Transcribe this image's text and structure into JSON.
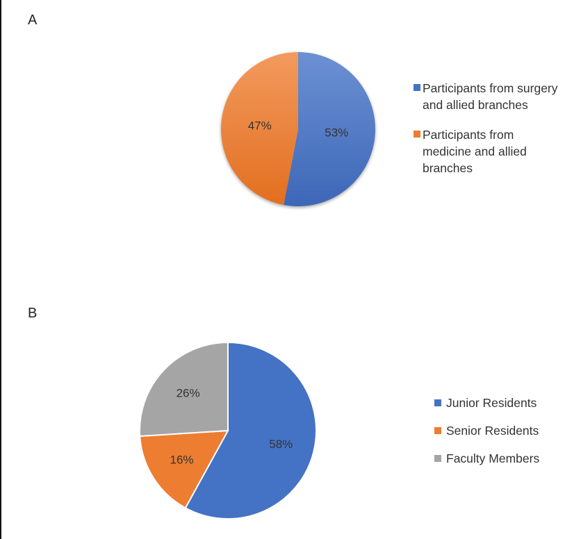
{
  "figure": {
    "panel_a_label": "A",
    "panel_b_label": "B"
  },
  "chart_data": [
    {
      "panel": "A",
      "type": "pie",
      "start_angle_deg": 0,
      "direction": "clockwise",
      "legend_position": "right",
      "slices": [
        {
          "label": "Participants from surgery and allied branches",
          "value": 53,
          "text": "53%",
          "color": "#4472C4"
        },
        {
          "label": "Participants from medicine and allied branches",
          "value": 47,
          "text": "47%",
          "color": "#ED7D31"
        }
      ]
    },
    {
      "panel": "B",
      "type": "pie",
      "start_angle_deg": 0,
      "direction": "clockwise",
      "legend_position": "right",
      "slices": [
        {
          "label": "Junior Residents",
          "value": 58,
          "text": "58%",
          "color": "#4472C4"
        },
        {
          "label": "Senior Residents",
          "value": 16,
          "text": "16%",
          "color": "#ED7D31"
        },
        {
          "label": "Faculty Members",
          "value": 26,
          "text": "26%",
          "color": "#A5A5A5"
        }
      ]
    }
  ]
}
